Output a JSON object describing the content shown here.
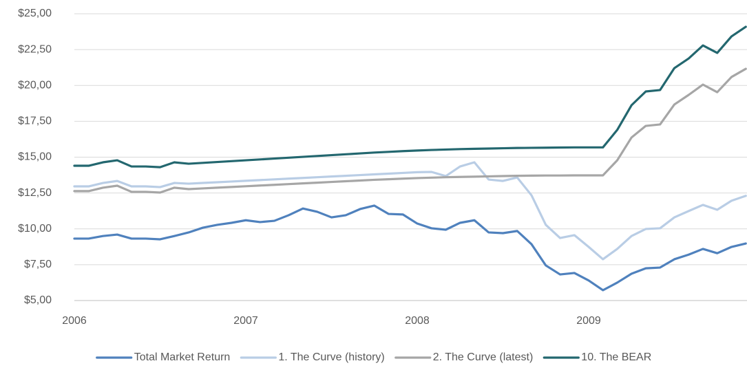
{
  "chart_data": {
    "type": "line",
    "categories": [
      "2006",
      null,
      null,
      null,
      null,
      null,
      null,
      null,
      null,
      null,
      null,
      null,
      "2007",
      null,
      null,
      null,
      null,
      null,
      null,
      null,
      null,
      null,
      null,
      null,
      "2008",
      null,
      null,
      null,
      null,
      null,
      null,
      null,
      null,
      null,
      null,
      null,
      "2009",
      null,
      null,
      null,
      null,
      null,
      null,
      null,
      null,
      null,
      null,
      null
    ],
    "series": [
      {
        "name": "Total Market Return",
        "color": "#4f81bd",
        "values": [
          9.32,
          9.32,
          9.5,
          9.6,
          9.32,
          9.32,
          9.27,
          9.5,
          9.75,
          10.08,
          10.28,
          10.42,
          10.6,
          10.47,
          10.56,
          10.95,
          11.42,
          11.19,
          10.8,
          10.95,
          11.38,
          11.62,
          11.04,
          11.0,
          10.37,
          10.04,
          9.94,
          10.42,
          10.6,
          9.75,
          9.7,
          9.85,
          8.93,
          7.45,
          6.82,
          6.92,
          6.4,
          5.72,
          6.25,
          6.87,
          7.25,
          7.3,
          7.88,
          8.2,
          8.6,
          8.3,
          8.74,
          8.98
        ]
      },
      {
        "name": "1. The Curve (history)",
        "color": "#b9cde5",
        "values": [
          12.96,
          12.96,
          13.2,
          13.34,
          12.96,
          12.96,
          12.91,
          13.2,
          13.15,
          13.2,
          13.25,
          13.3,
          13.35,
          13.4,
          13.45,
          13.5,
          13.55,
          13.6,
          13.65,
          13.7,
          13.75,
          13.8,
          13.85,
          13.9,
          13.95,
          13.97,
          13.68,
          14.35,
          14.64,
          13.44,
          13.34,
          13.58,
          12.34,
          10.28,
          9.36,
          9.56,
          8.74,
          7.88,
          8.6,
          9.5,
          9.99,
          10.04,
          10.8,
          11.24,
          11.67,
          11.33,
          11.96,
          12.3
        ]
      },
      {
        "name": "2. The Curve (latest)",
        "color": "#a6a6a6",
        "values": [
          12.63,
          12.63,
          12.87,
          13.01,
          12.58,
          12.58,
          12.53,
          12.87,
          12.77,
          12.82,
          12.87,
          12.92,
          12.97,
          13.02,
          13.07,
          13.12,
          13.17,
          13.22,
          13.27,
          13.32,
          13.37,
          13.42,
          13.46,
          13.5,
          13.54,
          13.57,
          13.6,
          13.62,
          13.64,
          13.66,
          13.68,
          13.7,
          13.71,
          13.72,
          13.72,
          13.73,
          13.73,
          13.73,
          14.78,
          16.37,
          17.18,
          17.28,
          18.67,
          19.34,
          20.06,
          19.53,
          20.59,
          21.16
        ]
      },
      {
        "name": "10. The BEAR",
        "color": "#23676f",
        "values": [
          14.4,
          14.4,
          14.64,
          14.78,
          14.35,
          14.35,
          14.3,
          14.64,
          14.54,
          14.6,
          14.66,
          14.72,
          14.78,
          14.84,
          14.9,
          14.96,
          15.02,
          15.08,
          15.14,
          15.2,
          15.26,
          15.32,
          15.37,
          15.42,
          15.46,
          15.5,
          15.53,
          15.56,
          15.58,
          15.6,
          15.62,
          15.64,
          15.65,
          15.66,
          15.67,
          15.68,
          15.68,
          15.68,
          16.9,
          18.62,
          19.58,
          19.68,
          21.21,
          21.88,
          22.79,
          22.27,
          23.42,
          24.09
        ]
      }
    ],
    "ylim": [
      5,
      25
    ],
    "yticks": [
      {
        "value": 5,
        "label": "$5,00"
      },
      {
        "value": 7.5,
        "label": "$7,50"
      },
      {
        "value": 10,
        "label": "$10,00"
      },
      {
        "value": 12.5,
        "label": "$12,50"
      },
      {
        "value": 15,
        "label": "$15,00"
      },
      {
        "value": 17.5,
        "label": "$17,50"
      },
      {
        "value": 20,
        "label": "$20,00"
      },
      {
        "value": 22.5,
        "label": "$22,50"
      },
      {
        "value": 25,
        "label": "$25,00"
      }
    ],
    "grid": true,
    "legend": "bottom"
  }
}
